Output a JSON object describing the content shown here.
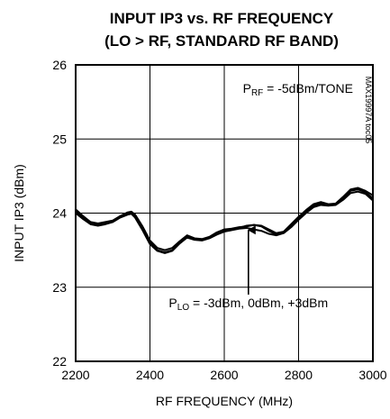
{
  "chart_data": {
    "type": "line",
    "title_line1": "INPUT IP3 vs. RF FREQUENCY",
    "title_line2": "(LO > RF, STANDARD RF BAND)",
    "xlabel": "RF FREQUENCY (MHz)",
    "ylabel": "INPUT IP3 (dBm)",
    "xlim": [
      2200,
      3000
    ],
    "ylim": [
      22,
      26
    ],
    "xticks": [
      2200,
      2400,
      2600,
      2800,
      3000
    ],
    "yticks": [
      22,
      23,
      24,
      25,
      26
    ],
    "grid": true,
    "annotations": {
      "condition_prefix": "P",
      "condition_sub": "RF",
      "condition_suffix": " = -5dBm/TONE",
      "curves_prefix": "P",
      "curves_sub": "LO",
      "curves_suffix": " = -3dBm, 0dBm, +3dBm",
      "figure_id": "MAX19997A toc05",
      "arrow_from": [
        2665,
        22.9
      ],
      "arrow_to": [
        2665,
        23.82
      ]
    },
    "series": [
      {
        "x": [
          2200,
          2220,
          2240,
          2260,
          2280,
          2300,
          2320,
          2340,
          2350,
          2360,
          2380,
          2400,
          2420,
          2440,
          2460,
          2480,
          2500,
          2520,
          2540,
          2560,
          2580,
          2600,
          2620,
          2640,
          2660,
          2680,
          2700,
          2720,
          2740,
          2760,
          2780,
          2800,
          2820,
          2840,
          2860,
          2880,
          2900,
          2920,
          2940,
          2960,
          2980,
          3000
        ],
        "y": [
          24.05,
          23.96,
          23.88,
          23.86,
          23.88,
          23.9,
          23.96,
          24.01,
          24.02,
          23.98,
          23.82,
          23.63,
          23.53,
          23.5,
          23.53,
          23.62,
          23.7,
          23.66,
          23.65,
          23.68,
          23.74,
          23.78,
          23.79,
          23.81,
          23.82,
          23.84,
          23.83,
          23.78,
          23.73,
          23.75,
          23.85,
          23.95,
          24.04,
          24.12,
          24.15,
          24.12,
          24.13,
          24.22,
          24.32,
          24.34,
          24.3,
          24.24
        ],
        "color": "#000000"
      },
      {
        "x": [
          2200,
          2220,
          2240,
          2260,
          2280,
          2300,
          2320,
          2340,
          2350,
          2360,
          2380,
          2400,
          2420,
          2440,
          2460,
          2480,
          2500,
          2520,
          2540,
          2560,
          2580,
          2600,
          2620,
          2640,
          2660,
          2680,
          2700,
          2720,
          2740,
          2760,
          2780,
          2800,
          2820,
          2840,
          2860,
          2880,
          2900,
          2920,
          2940,
          2960,
          2980,
          3000
        ],
        "y": [
          24.03,
          23.94,
          23.86,
          23.84,
          23.86,
          23.89,
          23.95,
          23.99,
          24.0,
          23.96,
          23.79,
          23.6,
          23.5,
          23.47,
          23.5,
          23.6,
          23.68,
          23.65,
          23.64,
          23.67,
          23.72,
          23.76,
          23.78,
          23.8,
          23.83,
          23.84,
          23.82,
          23.76,
          23.71,
          23.74,
          23.83,
          23.93,
          24.02,
          24.1,
          24.13,
          24.11,
          24.12,
          24.2,
          24.3,
          24.32,
          24.28,
          24.2
        ],
        "color": "#000000"
      },
      {
        "x": [
          2200,
          2220,
          2240,
          2260,
          2280,
          2300,
          2320,
          2340,
          2350,
          2360,
          2380,
          2400,
          2420,
          2440,
          2460,
          2480,
          2500,
          2520,
          2540,
          2560,
          2580,
          2600,
          2620,
          2640,
          2660,
          2680,
          2700,
          2720,
          2740,
          2760,
          2780,
          2800,
          2820,
          2840,
          2860,
          2880,
          2900,
          2920,
          2940,
          2960,
          2980,
          3000
        ],
        "y": [
          24.0,
          23.92,
          23.85,
          23.83,
          23.85,
          23.88,
          23.94,
          23.98,
          23.99,
          23.94,
          23.77,
          23.58,
          23.49,
          23.46,
          23.49,
          23.59,
          23.67,
          23.64,
          23.63,
          23.66,
          23.71,
          23.75,
          23.77,
          23.79,
          23.8,
          23.78,
          23.76,
          23.72,
          23.7,
          23.73,
          23.81,
          23.91,
          24.0,
          24.08,
          24.11,
          24.1,
          24.11,
          24.18,
          24.27,
          24.29,
          24.26,
          24.17
        ],
        "color": "#000000"
      }
    ]
  }
}
